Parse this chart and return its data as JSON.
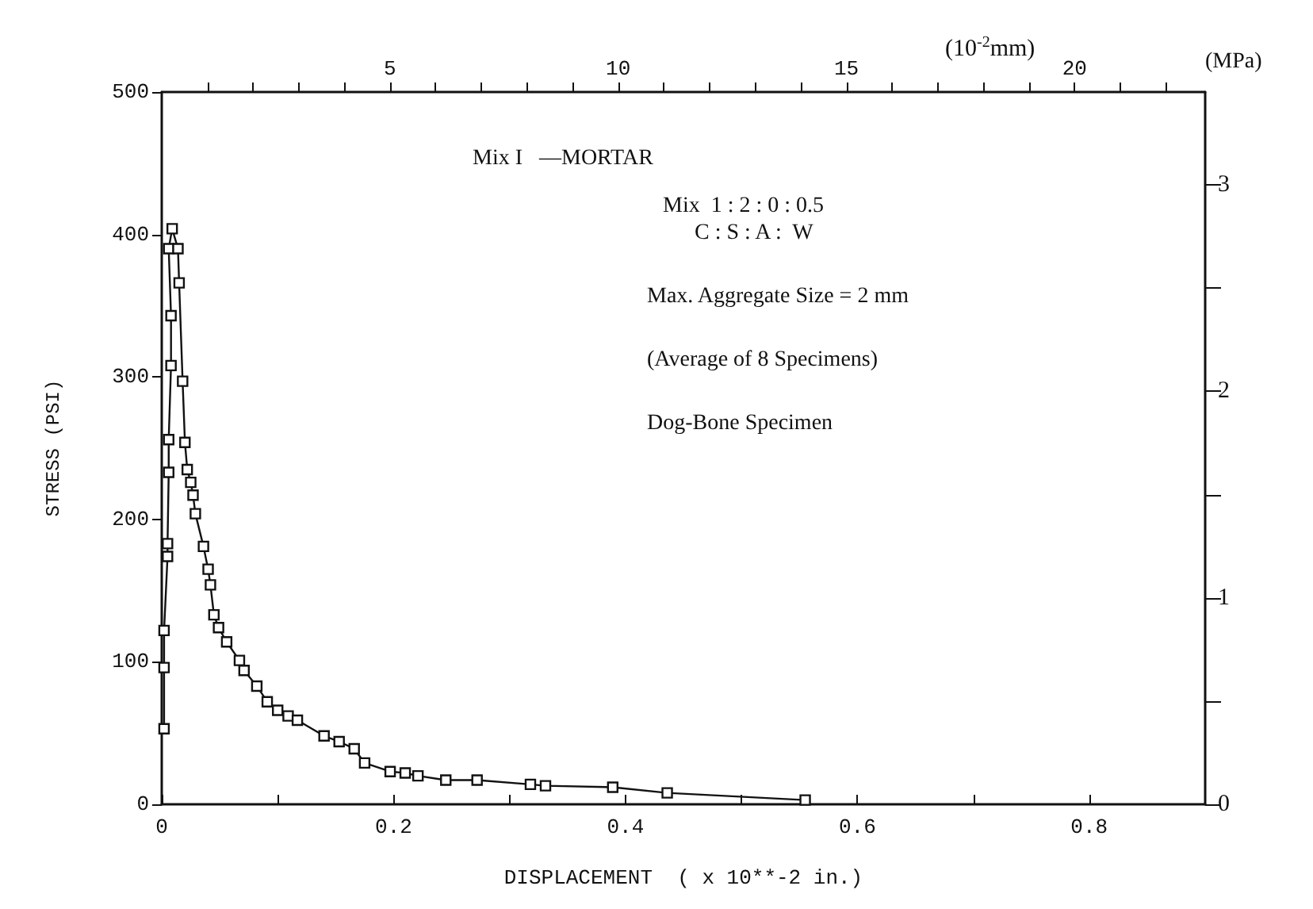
{
  "chart_data": {
    "type": "line",
    "xlabel": "DISPLACEMENT  ( x 10**-2 in.)",
    "ylabel": "STRESS (PSI)",
    "y2label": "(MPa)",
    "x2label": "(10$^{-2}$mm)",
    "annotations": [
      "Mix I   —MORTAR",
      "Mix  1 : 2 : 0 : 0.5",
      "C : S : A :  W",
      "Max. Aggregate Size = 2 mm",
      "(Average of 8 Specimens)",
      "Dog-Bone Specimen"
    ],
    "marker": "square",
    "line_style": "solid",
    "series": [
      {
        "color": "#111111",
        "x": [
          0.002,
          0.002,
          0.002,
          0.005,
          0.005,
          0.006,
          0.006,
          0.008,
          0.008,
          0.006,
          0.009,
          0.014,
          0.015,
          0.018,
          0.02,
          0.022,
          0.025,
          0.027,
          0.029,
          0.036,
          0.04,
          0.042,
          0.045,
          0.049,
          0.056,
          0.067,
          0.071,
          0.082,
          0.091,
          0.1,
          0.109,
          0.117,
          0.14,
          0.153,
          0.166,
          0.175,
          0.197,
          0.21,
          0.221,
          0.245,
          0.272,
          0.318,
          0.331,
          0.389,
          0.436,
          0.555
        ],
        "values": [
          53,
          96,
          122,
          174,
          183,
          233,
          256,
          308,
          343,
          390,
          404,
          390,
          366,
          297,
          254,
          235,
          226,
          217,
          204,
          181,
          165,
          154,
          133,
          124,
          114,
          101,
          94,
          83,
          72,
          66,
          62,
          59,
          48,
          44,
          39,
          29,
          23,
          22,
          20,
          17,
          17,
          14,
          13,
          12,
          8,
          3
        ]
      }
    ],
    "xlim": [
      0,
      0.9
    ],
    "xticks": [
      0,
      {
        "value": 0.1,
        "label": null
      },
      0.2,
      {
        "value": 0.3,
        "label": null
      },
      0.4,
      {
        "value": 0.5,
        "label": null
      },
      0.6,
      {
        "value": 0.7,
        "label": null
      },
      0.8
    ],
    "ylim": [
      0,
      500
    ],
    "yticks": [
      0,
      100,
      200,
      300,
      400,
      500
    ],
    "y2lim": [
      0,
      3.45
    ],
    "y2ticks": [
      0,
      {
        "value": 0.5,
        "label": null
      },
      1,
      {
        "value": 1.5,
        "label": null
      },
      2,
      {
        "value": 2.5,
        "label": null
      },
      3
    ],
    "x2lim": [
      0,
      22.86
    ],
    "x2ticks": [
      {
        "value": 1,
        "label": null
      },
      {
        "value": 2,
        "label": null
      },
      {
        "value": 3,
        "label": null
      },
      {
        "value": 4,
        "label": null
      },
      5,
      {
        "value": 6,
        "label": null
      },
      {
        "value": 7,
        "label": null
      },
      {
        "value": 8,
        "label": null
      },
      {
        "value": 9,
        "label": null
      },
      10,
      {
        "value": 11,
        "label": null
      },
      {
        "value": 12,
        "label": null
      },
      {
        "value": 13,
        "label": null
      },
      {
        "value": 14,
        "label": null
      },
      15,
      {
        "value": 16,
        "label": null
      },
      {
        "value": 17,
        "label": null
      },
      {
        "value": 18,
        "label": null
      },
      {
        "value": 19,
        "label": null
      },
      20,
      {
        "value": 21,
        "label": null
      },
      {
        "value": 22,
        "label": null
      }
    ]
  }
}
